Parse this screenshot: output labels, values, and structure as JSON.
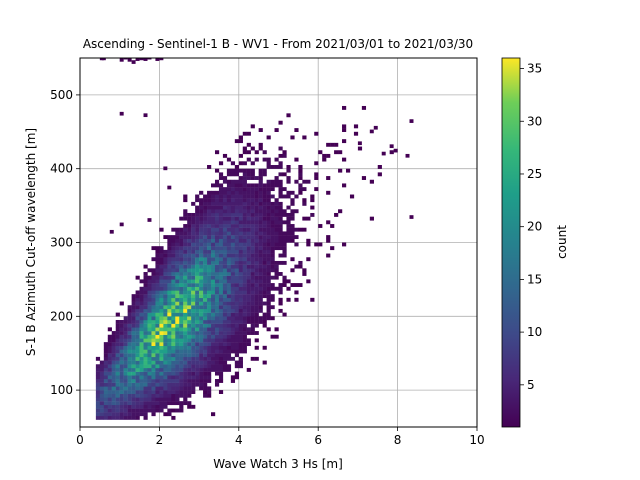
{
  "chart_data": {
    "type": "heatmap",
    "title": "Ascending - Sentinel-1 B - WV1 - From 2021/03/01 to 2021/03/30",
    "xlabel": "Wave Watch 3 Hs [m]",
    "ylabel": "S-1 B Azimuth Cut-off wavelength [m]",
    "xlim": [
      0,
      10
    ],
    "ylim": [
      50,
      550
    ],
    "xticks": [
      0,
      2,
      4,
      6,
      8,
      10
    ],
    "yticks": [
      100,
      200,
      300,
      400,
      500
    ],
    "grid": true,
    "colorbar": {
      "label": "count",
      "range": [
        1,
        36
      ],
      "ticks": [
        5,
        10,
        15,
        20,
        25,
        30,
        35
      ],
      "colormap": "viridis"
    },
    "distribution": {
      "description_free": true,
      "core_center": [
        2.2,
        200
      ],
      "peak_count": 36
    }
  }
}
